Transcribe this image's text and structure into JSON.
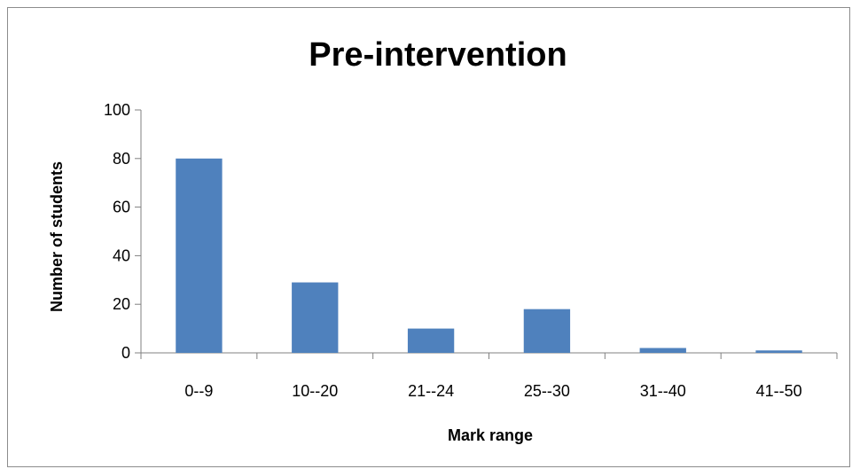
{
  "chart_data": {
    "type": "bar",
    "title": "Pre-intervention",
    "xlabel": "Mark range",
    "ylabel": "Number of students",
    "categories": [
      "0--9",
      "10--20",
      "21--24",
      "25--30",
      "31--40",
      "41--50"
    ],
    "values": [
      80,
      29,
      10,
      18,
      2,
      1
    ],
    "ylim": [
      0,
      100
    ],
    "yticks": [
      0,
      20,
      40,
      60,
      80,
      100
    ],
    "grid": false,
    "legend": "none",
    "bar_color": "#4f81bd"
  }
}
